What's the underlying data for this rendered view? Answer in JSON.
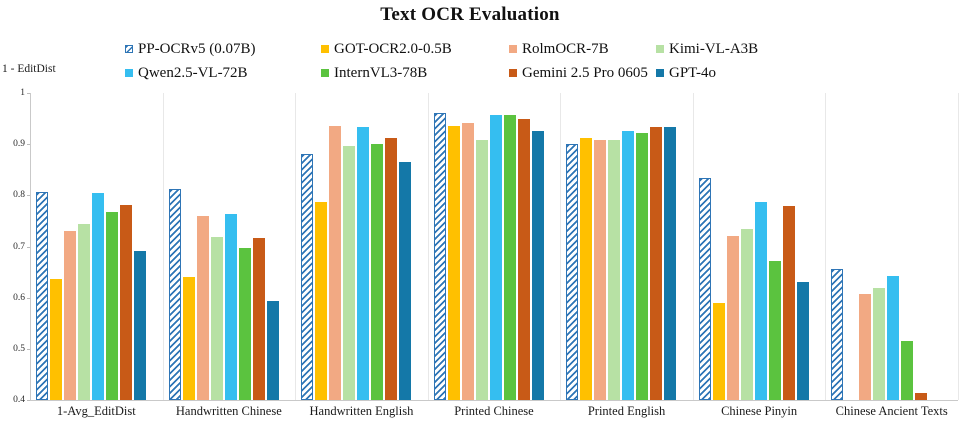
{
  "chart_data": {
    "type": "bar",
    "title": "Text OCR Evaluation",
    "ylabel": "1 - EditDist",
    "xlabel": "",
    "ylim": [
      0.4,
      1.0
    ],
    "ytick_labels": [
      "1",
      "0.9",
      "0.8",
      "0.7",
      "0.6",
      "0.5",
      "0.4"
    ],
    "grid": false,
    "legend_position": "top",
    "categories": [
      "1-Avg_EditDist",
      "Handwritten Chinese",
      "Handwritten English",
      "Printed Chinese",
      "Printed English",
      "Chinese Pinyin",
      "Chinese Ancient Texts"
    ],
    "series": [
      {
        "name": "PP-OCRv5 (0.07B)",
        "color": "#2E75B6",
        "pattern": "hatched",
        "values": [
          0.806,
          0.812,
          0.881,
          0.961,
          0.901,
          0.834,
          0.656
        ]
      },
      {
        "name": "GOT-OCR2.0-0.5B",
        "color": "#FFC000",
        "pattern": "solid",
        "values": [
          0.636,
          0.641,
          0.786,
          0.936,
          0.913,
          0.589,
          null
        ]
      },
      {
        "name": "RolmOCR-7B",
        "color": "#F2A983",
        "pattern": "solid",
        "values": [
          0.731,
          0.76,
          0.935,
          0.941,
          0.908,
          0.721,
          0.608
        ]
      },
      {
        "name": "Kimi-VL-A3B",
        "color": "#B7E1A4",
        "pattern": "solid",
        "values": [
          0.743,
          0.719,
          0.897,
          0.908,
          0.909,
          0.734,
          0.618
        ]
      },
      {
        "name": "Qwen2.5-VL-72B",
        "color": "#35BEF0",
        "pattern": "solid",
        "values": [
          0.804,
          0.764,
          0.933,
          0.957,
          0.925,
          0.787,
          0.643
        ]
      },
      {
        "name": "InternVL3-78B",
        "color": "#5BC33F",
        "pattern": "solid",
        "values": [
          0.768,
          0.698,
          0.901,
          0.957,
          0.921,
          0.672,
          0.515
        ]
      },
      {
        "name": "Gemini 2.5 Pro 0605",
        "color": "#C85A17",
        "pattern": "solid",
        "values": [
          0.781,
          0.716,
          0.912,
          0.95,
          0.934,
          0.78,
          0.414
        ]
      },
      {
        "name": "GPT-4o",
        "color": "#1478A8",
        "pattern": "solid",
        "values": [
          0.692,
          0.593,
          0.866,
          0.925,
          0.933,
          0.63,
          null
        ]
      }
    ]
  }
}
